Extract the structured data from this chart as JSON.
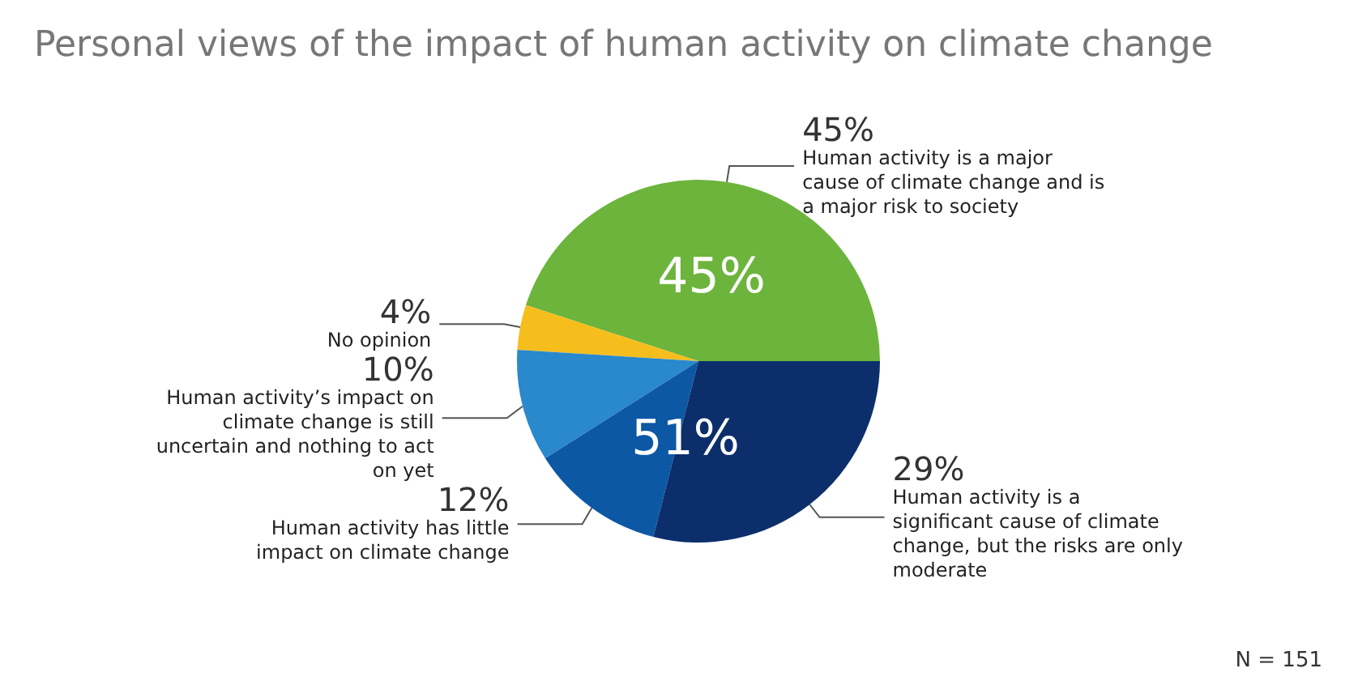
{
  "chart_data": {
    "type": "pie",
    "title": "Personal views of the impact of human activity on climate change",
    "categories": [
      "Human activity is a major cause of climate change and is a major risk to society",
      "No opinion",
      "Human activity’s impact on climate change is still uncertain and nothing to act on yet",
      "Human activity has little impact on climate change",
      "Human activity is a significant cause of climate change, but the risks are only moderate"
    ],
    "values": [
      45,
      4,
      10,
      12,
      29
    ],
    "colors": [
      "#6cb43c",
      "#f6be1c",
      "#2a88cc",
      "#0d58a4",
      "#0c2f6c"
    ],
    "value_labels": [
      "45%",
      "4%",
      "10%",
      "12%",
      "29%"
    ],
    "annotations": [
      "45%",
      "51%",
      "N = 151"
    ],
    "legend": false
  }
}
